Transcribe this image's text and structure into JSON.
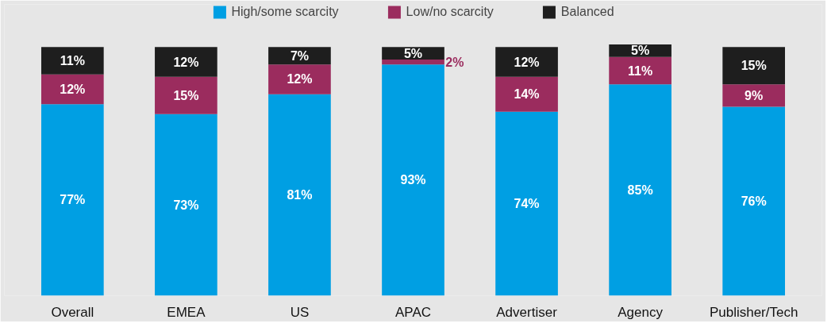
{
  "chart_data": {
    "type": "bar",
    "stacked": true,
    "categories": [
      "Overall",
      "EMEA",
      "US",
      "APAC",
      "Advertiser",
      "Agency",
      "Publisher/Tech"
    ],
    "series": [
      {
        "name": "High/some scarcity",
        "color": "#009fe3",
        "values": [
          77,
          73,
          81,
          93,
          74,
          85,
          76
        ],
        "value_labels": [
          "77%",
          "73%",
          "81%",
          "93%",
          "74%",
          "85%",
          "76%"
        ]
      },
      {
        "name": "Low/no scarcity",
        "color": "#9b2c5e",
        "values": [
          12,
          15,
          12,
          2,
          14,
          11,
          9
        ],
        "value_labels": [
          "12%",
          "15%",
          "12%",
          "2%",
          "14%",
          "11%",
          "9%"
        ]
      },
      {
        "name": "Balanced",
        "color": "#1e1e1e",
        "values": [
          11,
          12,
          7,
          5,
          12,
          5,
          15
        ],
        "value_labels": [
          "11%",
          "12%",
          "7%",
          "5%",
          "12%",
          "5%",
          "15%"
        ]
      }
    ],
    "legend": "top",
    "tick_labels": "x"
  }
}
